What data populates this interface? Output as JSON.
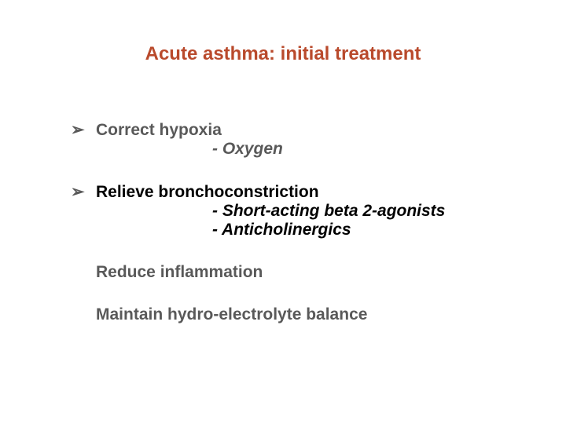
{
  "title": {
    "text": "Acute asthma: initial treatment",
    "color": "#b94a2c",
    "fontsize": 24
  },
  "bullet_glyph": "➢",
  "bullet_color": "#595959",
  "items": [
    {
      "heading": "Correct hypoxia",
      "heading_color": "#595959",
      "has_bullet": true,
      "subs": [
        {
          "text": "- Oxygen",
          "color": "#595959"
        }
      ]
    },
    {
      "heading": "Relieve bronchoconstriction",
      "heading_color": "#000000",
      "has_bullet": true,
      "subs": [
        {
          "text": "- Short-acting beta 2-agonists",
          "color": "#000000"
        },
        {
          "text": "- Anticholinergics",
          "color": "#000000"
        }
      ]
    },
    {
      "heading": "Reduce inflammation",
      "heading_color": "#595959",
      "has_bullet": false,
      "subs": []
    },
    {
      "heading": "Maintain hydro-electrolyte balance",
      "heading_color": "#595959",
      "has_bullet": false,
      "subs": []
    }
  ],
  "body_fontsize": 21
}
